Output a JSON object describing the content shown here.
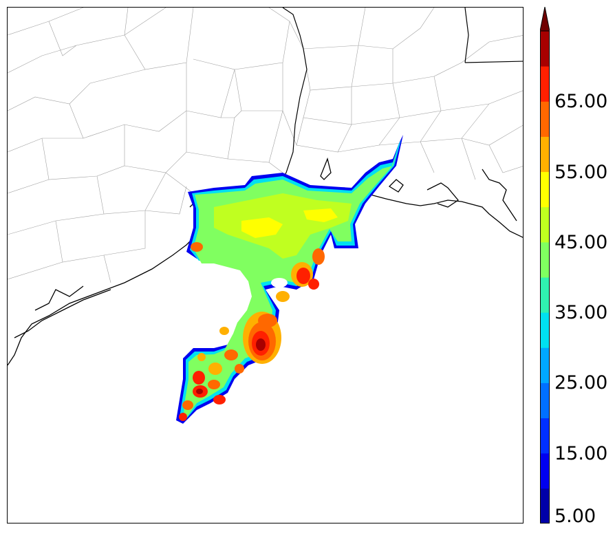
{
  "colorbar": {
    "levels": [
      5,
      10,
      15,
      20,
      25,
      30,
      35,
      40,
      45,
      50,
      55,
      60,
      65,
      70
    ],
    "colors": [
      "#0000a8",
      "#0000f0",
      "#0030ff",
      "#0070ff",
      "#00a8ff",
      "#00e0f0",
      "#30f0b0",
      "#80ff60",
      "#c0ff20",
      "#ffff00",
      "#ffb000",
      "#ff6800",
      "#ff2000",
      "#a80000"
    ],
    "extend_color": "#700000",
    "tick_labels": [
      "5.00",
      "15.00",
      "25.00",
      "35.00",
      "45.00",
      "55.00",
      "65.00"
    ],
    "extend": "max"
  },
  "map": {
    "coastline_color": "#000000",
    "county_line_color": "#999999",
    "background": "#ffffff",
    "field": "reflectivity contours over Gulf Coast"
  }
}
